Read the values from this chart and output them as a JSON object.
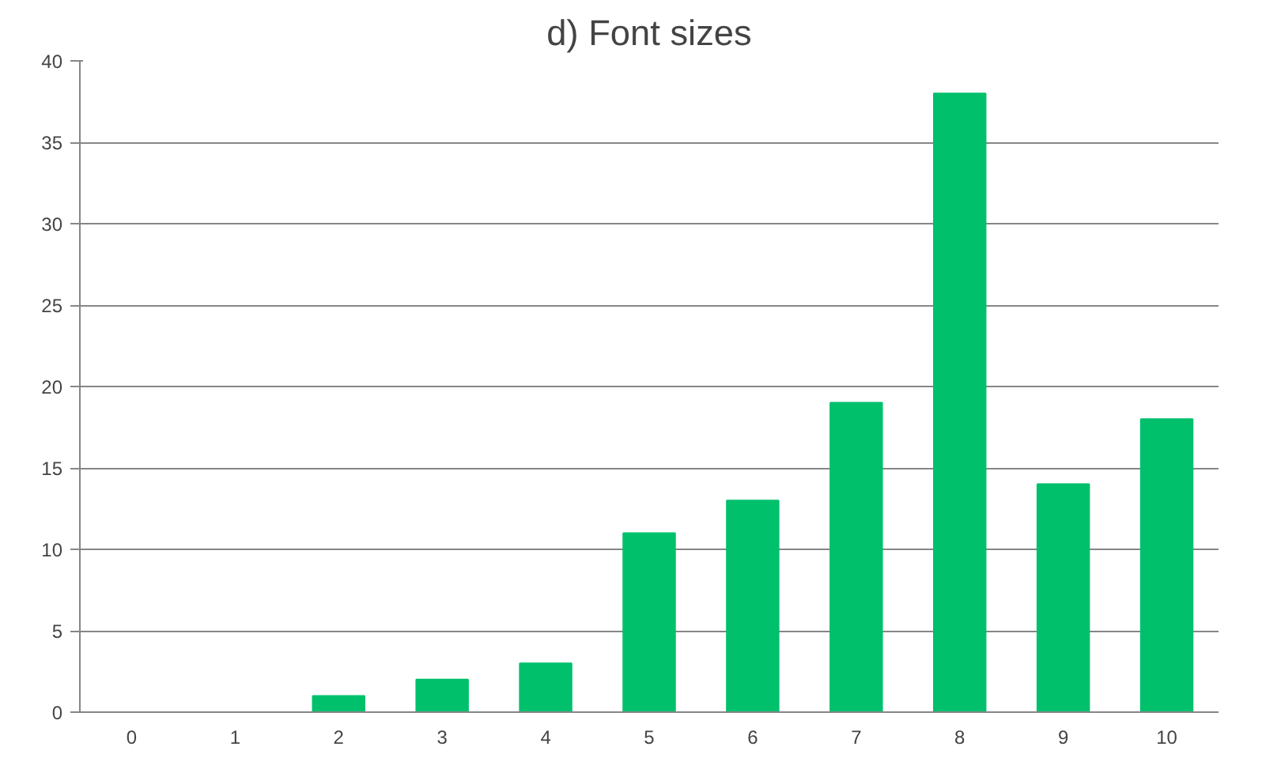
{
  "chart_data": {
    "type": "bar",
    "title": "d) Font sizes",
    "categories": [
      "0",
      "1",
      "2",
      "3",
      "4",
      "5",
      "6",
      "7",
      "8",
      "9",
      "10"
    ],
    "values": [
      0,
      0,
      1,
      2,
      3,
      11,
      13,
      19,
      38,
      14,
      18
    ],
    "color": "#00c06c",
    "ylim": [
      0,
      40
    ],
    "yticks": [
      0,
      5,
      10,
      15,
      20,
      25,
      30,
      35,
      40
    ],
    "grid": "y"
  }
}
